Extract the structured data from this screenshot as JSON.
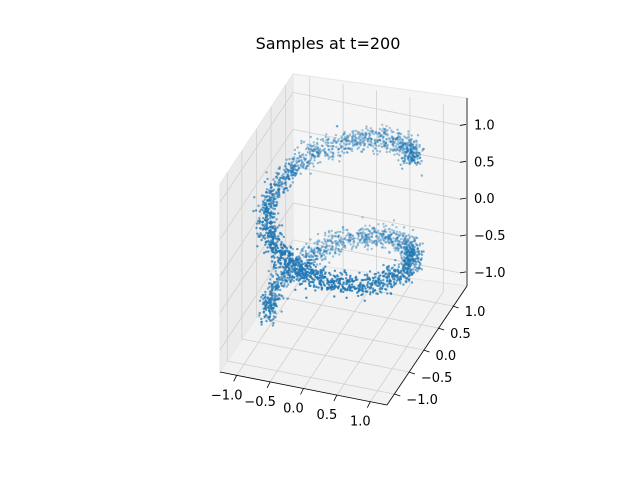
{
  "chart_data": {
    "type": "scatter",
    "projection": "3d",
    "title": "Samples at t=200",
    "xlabel": "",
    "ylabel": "",
    "zlabel": "",
    "x_ticks": [
      "−1.0",
      "−0.5",
      "0.0",
      "0.5",
      "1.0"
    ],
    "y_ticks": [
      "−1.0",
      "−0.5",
      "0.0",
      "0.5",
      "1.0"
    ],
    "z_ticks": [
      "−1.0",
      "−0.5",
      "0.0",
      "0.5",
      "1.0"
    ],
    "xlim": [
      -1.25,
      1.25
    ],
    "ylim": [
      -1.25,
      1.25
    ],
    "zlim": [
      -1.3,
      1.25
    ],
    "grid": true,
    "legend": "none",
    "marker_color": "#1f77b4",
    "description_of_points": "noisy samples of a helix (swiss-roll style spiral) of radius ~1 winding around the z axis from z=-1 to z=1",
    "points": {
      "shape": "helix",
      "radius": 1.0,
      "z_range": [
        -1.0,
        1.0
      ],
      "turns": 1.5,
      "noise_std": 0.07,
      "count": 3000
    }
  }
}
